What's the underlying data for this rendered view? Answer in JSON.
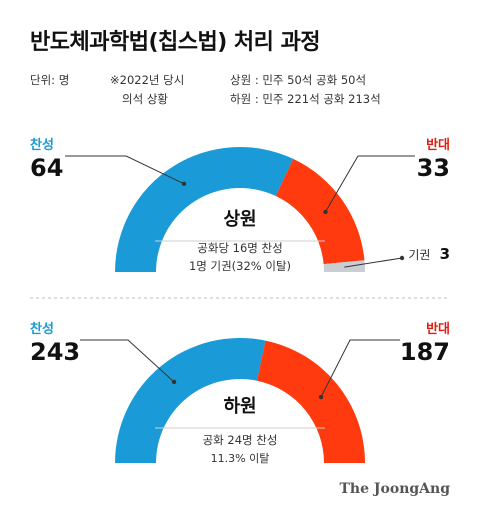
{
  "header": {
    "title": "반도체과학법(칩스법) 처리 과정",
    "unit": "단위: 명",
    "note_line1": "※2022년 당시",
    "note_line2": "의석 상황",
    "senate_seats": "상원 : 민주 50석 공화 50석",
    "house_seats": "하원 : 민주 221석 공화 213석"
  },
  "colors": {
    "yes": "#1a9bd7",
    "no": "#ff3a0e",
    "abstain": "#c9ced2"
  },
  "chart_data": [
    {
      "type": "pie",
      "title": "상원",
      "categories": [
        "찬성",
        "반대",
        "기권"
      ],
      "values": [
        64,
        33,
        3
      ],
      "value_labels": [
        "64",
        "33",
        "3"
      ],
      "notes": [
        "공화당 16명 찬성",
        "1명 기권(32% 이탈)"
      ]
    },
    {
      "type": "pie",
      "title": "하원",
      "categories": [
        "찬성",
        "반대"
      ],
      "values": [
        243,
        187
      ],
      "value_labels": [
        "243",
        "187"
      ],
      "notes": [
        "공화 24명 찬성",
        "11.3% 이탈"
      ]
    }
  ],
  "credit": "The JoongAng"
}
